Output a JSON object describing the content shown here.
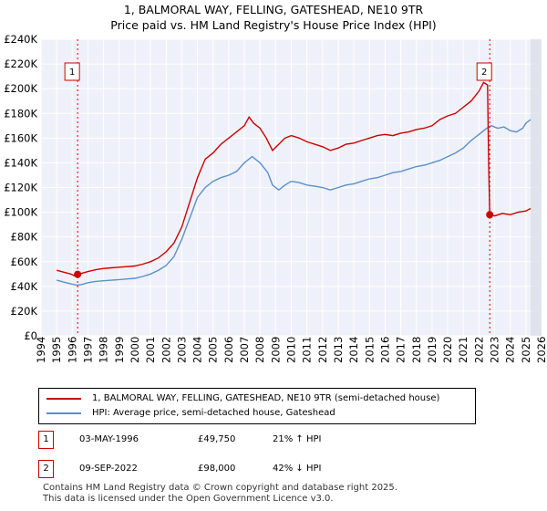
{
  "chart_data": {
    "type": "line",
    "title": "1, BALMORAL WAY, FELLING, GATESHEAD, NE10 9TR",
    "subtitle": "Price paid vs. HM Land Registry's House Price Index (HPI)",
    "xlim": [
      1994,
      2026
    ],
    "ylim": [
      0,
      240000
    ],
    "x_ticks": [
      1994,
      1995,
      1996,
      1997,
      1998,
      1999,
      2000,
      2001,
      2002,
      2003,
      2004,
      2005,
      2006,
      2007,
      2008,
      2009,
      2010,
      2011,
      2012,
      2013,
      2014,
      2015,
      2016,
      2017,
      2018,
      2019,
      2020,
      2021,
      2022,
      2023,
      2024,
      2025,
      2026
    ],
    "y_ticks": [
      0,
      20000,
      40000,
      60000,
      80000,
      100000,
      120000,
      140000,
      160000,
      180000,
      200000,
      220000,
      240000
    ],
    "y_tick_labels": [
      "£0",
      "£20K",
      "£40K",
      "£60K",
      "£80K",
      "£100K",
      "£120K",
      "£140K",
      "£160K",
      "£180K",
      "£200K",
      "£220K",
      "£240K"
    ],
    "grid": true,
    "series": [
      {
        "name": "1, BALMORAL WAY, FELLING, GATESHEAD, NE10 9TR (semi-detached house)",
        "color": "#cc0000",
        "points": [
          [
            1995.0,
            53000
          ],
          [
            1995.3,
            52000
          ],
          [
            1995.6,
            51000
          ],
          [
            1995.9,
            50000
          ],
          [
            1996.15,
            48500
          ],
          [
            1996.34,
            49750
          ],
          [
            1996.6,
            50500
          ],
          [
            1997.0,
            52000
          ],
          [
            1997.5,
            53500
          ],
          [
            1998.0,
            54500
          ],
          [
            1998.5,
            55000
          ],
          [
            1999.0,
            55500
          ],
          [
            1999.5,
            56000
          ],
          [
            2000.0,
            56500
          ],
          [
            2000.5,
            58000
          ],
          [
            2001.0,
            60000
          ],
          [
            2001.5,
            63000
          ],
          [
            2002.0,
            68000
          ],
          [
            2002.5,
            75000
          ],
          [
            2003.0,
            88000
          ],
          [
            2003.5,
            108000
          ],
          [
            2004.0,
            128000
          ],
          [
            2004.5,
            143000
          ],
          [
            2005.0,
            148000
          ],
          [
            2005.5,
            155000
          ],
          [
            2006.0,
            160000
          ],
          [
            2006.5,
            165000
          ],
          [
            2007.0,
            170000
          ],
          [
            2007.3,
            177000
          ],
          [
            2007.6,
            172000
          ],
          [
            2008.0,
            168000
          ],
          [
            2008.4,
            160000
          ],
          [
            2008.8,
            150000
          ],
          [
            2009.2,
            155000
          ],
          [
            2009.6,
            160000
          ],
          [
            2010.0,
            162000
          ],
          [
            2010.5,
            160000
          ],
          [
            2011.0,
            157000
          ],
          [
            2011.5,
            155000
          ],
          [
            2012.0,
            153000
          ],
          [
            2012.5,
            150000
          ],
          [
            2013.0,
            152000
          ],
          [
            2013.5,
            155000
          ],
          [
            2014.0,
            156000
          ],
          [
            2014.5,
            158000
          ],
          [
            2015.0,
            160000
          ],
          [
            2015.5,
            162000
          ],
          [
            2016.0,
            163000
          ],
          [
            2016.5,
            162000
          ],
          [
            2017.0,
            164000
          ],
          [
            2017.5,
            165000
          ],
          [
            2018.0,
            167000
          ],
          [
            2018.5,
            168000
          ],
          [
            2019.0,
            170000
          ],
          [
            2019.5,
            175000
          ],
          [
            2020.0,
            178000
          ],
          [
            2020.5,
            180000
          ],
          [
            2021.0,
            185000
          ],
          [
            2021.5,
            190000
          ],
          [
            2022.0,
            198000
          ],
          [
            2022.3,
            205000
          ],
          [
            2022.55,
            203000
          ],
          [
            2022.62,
            140000
          ],
          [
            2022.69,
            98000
          ],
          [
            2023.0,
            97000
          ],
          [
            2023.5,
            99000
          ],
          [
            2024.0,
            98000
          ],
          [
            2024.5,
            100000
          ],
          [
            2025.0,
            101000
          ],
          [
            2025.3,
            103000
          ]
        ]
      },
      {
        "name": "HPI: Average price, semi-detached house, Gateshead",
        "color": "#5b8fc9",
        "points": [
          [
            1995.0,
            45000
          ],
          [
            1995.3,
            44000
          ],
          [
            1995.6,
            43000
          ],
          [
            1995.9,
            42000
          ],
          [
            1996.3,
            41000
          ],
          [
            1996.6,
            41500
          ],
          [
            1997.0,
            43000
          ],
          [
            1997.5,
            44000
          ],
          [
            1998.0,
            44500
          ],
          [
            1998.5,
            45000
          ],
          [
            1999.0,
            45500
          ],
          [
            1999.5,
            46000
          ],
          [
            2000.0,
            46500
          ],
          [
            2000.5,
            48000
          ],
          [
            2001.0,
            50000
          ],
          [
            2001.5,
            53000
          ],
          [
            2002.0,
            57000
          ],
          [
            2002.5,
            64000
          ],
          [
            2003.0,
            78000
          ],
          [
            2003.5,
            95000
          ],
          [
            2004.0,
            112000
          ],
          [
            2004.5,
            120000
          ],
          [
            2005.0,
            125000
          ],
          [
            2005.5,
            128000
          ],
          [
            2006.0,
            130000
          ],
          [
            2006.5,
            133000
          ],
          [
            2007.0,
            140000
          ],
          [
            2007.5,
            145000
          ],
          [
            2008.0,
            140000
          ],
          [
            2008.5,
            132000
          ],
          [
            2008.8,
            122000
          ],
          [
            2009.2,
            118000
          ],
          [
            2009.6,
            122000
          ],
          [
            2010.0,
            125000
          ],
          [
            2010.5,
            124000
          ],
          [
            2011.0,
            122000
          ],
          [
            2011.5,
            121000
          ],
          [
            2012.0,
            120000
          ],
          [
            2012.5,
            118000
          ],
          [
            2013.0,
            120000
          ],
          [
            2013.5,
            122000
          ],
          [
            2014.0,
            123000
          ],
          [
            2014.5,
            125000
          ],
          [
            2015.0,
            127000
          ],
          [
            2015.5,
            128000
          ],
          [
            2016.0,
            130000
          ],
          [
            2016.5,
            132000
          ],
          [
            2017.0,
            133000
          ],
          [
            2017.5,
            135000
          ],
          [
            2018.0,
            137000
          ],
          [
            2018.5,
            138000
          ],
          [
            2019.0,
            140000
          ],
          [
            2019.5,
            142000
          ],
          [
            2020.0,
            145000
          ],
          [
            2020.5,
            148000
          ],
          [
            2021.0,
            152000
          ],
          [
            2021.5,
            158000
          ],
          [
            2022.0,
            163000
          ],
          [
            2022.5,
            168000
          ],
          [
            2022.8,
            170000
          ],
          [
            2023.2,
            168000
          ],
          [
            2023.6,
            169000
          ],
          [
            2024.0,
            166000
          ],
          [
            2024.4,
            165000
          ],
          [
            2024.8,
            168000
          ],
          [
            2025.0,
            172000
          ],
          [
            2025.3,
            175000
          ]
        ]
      }
    ],
    "annotations": [
      {
        "label": "1",
        "x": 1996.34,
        "y": 49750
      },
      {
        "label": "2",
        "x": 2022.69,
        "y": 98000
      }
    ]
  },
  "legend": {
    "series1": "1, BALMORAL WAY, FELLING, GATESHEAD, NE10 9TR (semi-detached house)",
    "series2": "HPI: Average price, semi-detached house, Gateshead"
  },
  "table": [
    {
      "num": "1",
      "date": "03-MAY-1996",
      "price": "£49,750",
      "hpi": "21% ↑ HPI"
    },
    {
      "num": "2",
      "date": "09-SEP-2022",
      "price": "£98,000",
      "hpi": "42% ↓ HPI"
    }
  ],
  "footer": {
    "line1": "Contains HM Land Registry data © Crown copyright and database right 2025.",
    "line2": "This data is licensed under the Open Government Licence v3.0."
  }
}
